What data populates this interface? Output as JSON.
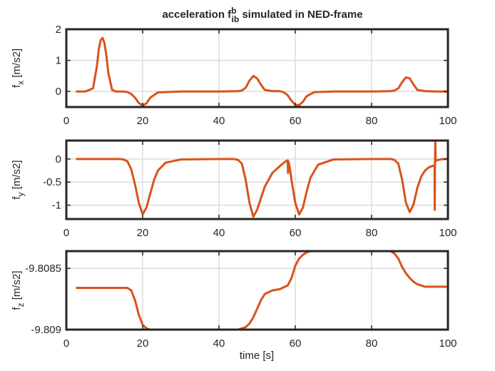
{
  "figure": {
    "title_main": "acceleration f",
    "title_sup": "b",
    "title_sub": "ib",
    "title_rest": " simulated in NED-frame",
    "xlabel": "time [s]"
  },
  "colors": {
    "line": "#d95319",
    "grid": "#dcdcdc",
    "axes": "#262626"
  },
  "chart_data": [
    {
      "type": "line",
      "ylabel_main": "f",
      "ylabel_sub": "x",
      "ylabel_unit": " [m/s2]",
      "xlim": [
        0,
        100
      ],
      "ylim": [
        -0.5,
        2
      ],
      "xticks": [
        0,
        20,
        40,
        60,
        80,
        100
      ],
      "yticks": [
        {
          "v": 2,
          "label": "2"
        },
        {
          "v": 1,
          "label": "1"
        },
        {
          "v": 0,
          "label": "0"
        }
      ],
      "x": [
        2.5,
        5,
        7,
        8,
        8.5,
        9,
        9.5,
        10,
        10.5,
        11,
        12,
        13,
        15,
        16,
        17,
        18,
        19,
        20,
        21,
        22,
        24,
        30,
        40,
        45,
        46,
        47,
        48,
        49,
        50,
        51,
        52,
        54,
        56,
        57,
        58,
        59,
        60,
        61,
        62,
        63,
        65,
        70,
        80,
        85,
        86,
        87,
        88,
        89,
        90,
        91,
        92,
        94,
        97,
        100
      ],
      "y": [
        0,
        0,
        0.1,
        0.8,
        1.35,
        1.65,
        1.72,
        1.55,
        1.15,
        0.6,
        0.05,
        0,
        0,
        -0.02,
        -0.08,
        -0.2,
        -0.37,
        -0.45,
        -0.38,
        -0.2,
        -0.03,
        0,
        0,
        0.01,
        0.03,
        0.12,
        0.35,
        0.5,
        0.42,
        0.22,
        0.05,
        0.01,
        0.01,
        -0.03,
        -0.12,
        -0.3,
        -0.43,
        -0.44,
        -0.33,
        -0.15,
        -0.02,
        0,
        0,
        0.01,
        0.03,
        0.1,
        0.3,
        0.45,
        0.42,
        0.22,
        0.05,
        0.01,
        0,
        0
      ]
    },
    {
      "type": "line",
      "ylabel_main": "f",
      "ylabel_sub": "y",
      "ylabel_unit": " [m/s2]",
      "xlim": [
        0,
        100
      ],
      "ylim": [
        -1.3,
        0.4
      ],
      "xticks": [
        0,
        20,
        40,
        60,
        80,
        100
      ],
      "yticks": [
        {
          "v": 0,
          "label": "0"
        },
        {
          "v": -0.5,
          "label": "-0.5"
        },
        {
          "v": -1,
          "label": "-1"
        }
      ],
      "x": [
        2.5,
        10,
        14,
        15,
        16,
        17,
        18,
        19,
        20,
        21,
        22,
        23,
        24,
        26,
        30,
        40,
        44,
        45,
        46,
        47,
        48,
        49,
        50,
        52,
        54,
        56,
        57,
        57.5,
        58,
        58.1,
        58.2,
        58.6,
        59,
        60,
        61,
        62,
        63,
        64,
        66,
        70,
        80,
        85,
        86,
        87,
        88,
        89,
        90,
        91,
        92,
        93,
        94,
        95,
        96,
        96.5,
        96.55,
        96.6,
        96.7,
        96.8,
        97,
        98,
        99,
        100
      ],
      "y": [
        0,
        0,
        0,
        -0.01,
        -0.05,
        -0.22,
        -0.55,
        -0.95,
        -1.2,
        -1.05,
        -0.75,
        -0.45,
        -0.25,
        -0.08,
        -0.01,
        0,
        0,
        -0.02,
        -0.1,
        -0.45,
        -0.95,
        -1.25,
        -1.1,
        -0.6,
        -0.3,
        -0.15,
        -0.08,
        -0.05,
        -0.03,
        -0.3,
        -0.05,
        -0.2,
        -0.45,
        -0.95,
        -1.2,
        -1.05,
        -0.7,
        -0.4,
        -0.12,
        -0.01,
        0,
        0,
        -0.02,
        -0.1,
        -0.45,
        -0.95,
        -1.15,
        -0.98,
        -0.62,
        -0.38,
        -0.25,
        -0.18,
        -0.15,
        -0.13,
        -1.1,
        -0.1,
        0.38,
        -0.05,
        -0.03,
        -0.01,
        0,
        0
      ]
    },
    {
      "type": "line",
      "ylabel_main": "f",
      "ylabel_sub": "z",
      "ylabel_unit": " [m/s2]",
      "xlim": [
        0,
        100
      ],
      "ylim": [
        -9.809,
        -9.80836
      ],
      "xticks": [
        0,
        20,
        40,
        60,
        80,
        100
      ],
      "yticks": [
        {
          "v": -9.8085,
          "label": "-9.8085"
        },
        {
          "v": -9.809,
          "label": "-9.809"
        }
      ],
      "xticklabels_visible": true,
      "x": [
        2.5,
        10,
        16,
        17,
        18,
        19,
        20,
        21,
        22,
        24,
        30,
        40,
        45,
        46,
        47,
        48,
        49,
        50,
        51,
        52,
        54,
        56,
        58,
        59,
        60,
        61,
        62,
        63,
        64,
        66,
        70,
        80,
        85,
        86,
        87,
        88,
        89,
        90,
        91,
        92,
        94,
        96,
        98,
        100
      ],
      "y": [
        -9.80866,
        -9.80866,
        -9.80866,
        -9.80868,
        -9.80876,
        -9.80888,
        -9.80896,
        -9.80899,
        -9.809,
        -9.809,
        -9.809,
        -9.809,
        -9.809,
        -9.80899,
        -9.80898,
        -9.80895,
        -9.8089,
        -9.80883,
        -9.80876,
        -9.80871,
        -9.80868,
        -9.80867,
        -9.80864,
        -9.80858,
        -9.80848,
        -9.80842,
        -9.80839,
        -9.80837,
        -9.80836,
        -9.80836,
        -9.80836,
        -9.80836,
        -9.80836,
        -9.80838,
        -9.80842,
        -9.80849,
        -9.80854,
        -9.80858,
        -9.80861,
        -9.80863,
        -9.80865,
        -9.80865,
        -9.80865,
        -9.80865
      ]
    }
  ]
}
